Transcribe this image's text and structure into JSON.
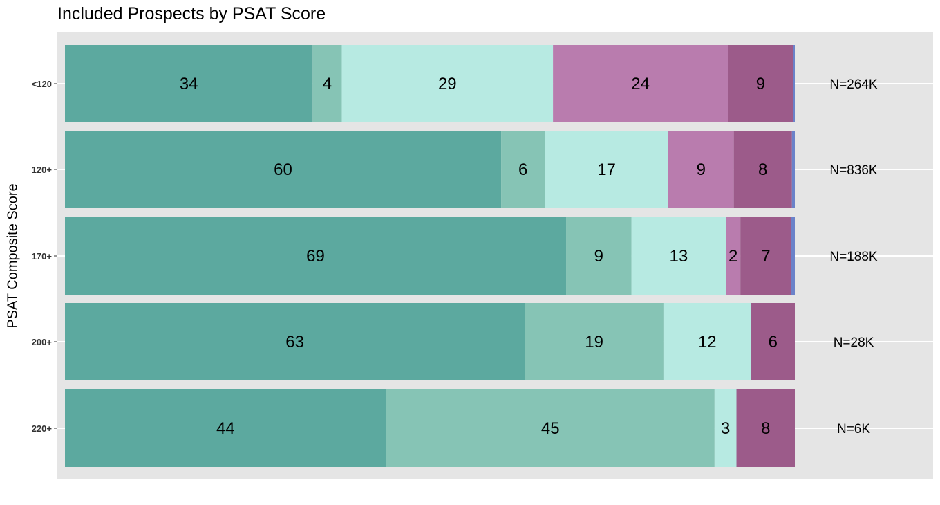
{
  "chart_data": {
    "type": "bar",
    "orientation": "horizontal",
    "stacked": true,
    "title": "Included Prospects by PSAT Score",
    "ylabel": "PSAT Composite Score",
    "xlabel": "",
    "categories": [
      "<120",
      "120+",
      "170+",
      "200+",
      "220+"
    ],
    "n_labels": [
      "N=264K",
      "N=836K",
      "N=188K",
      "N=28K",
      "N=6K"
    ],
    "series": [
      {
        "color": "#5ca99f",
        "values": [
          34,
          60,
          69,
          63,
          44
        ],
        "labels": [
          "34",
          "60",
          "69",
          "63",
          "44"
        ]
      },
      {
        "color": "#86c4b5",
        "values": [
          4,
          6,
          9,
          19,
          45
        ],
        "labels": [
          "4",
          "6",
          "9",
          "19",
          "45"
        ]
      },
      {
        "color": "#b7eae2",
        "values": [
          29,
          17,
          13,
          12,
          3
        ],
        "labels": [
          "29",
          "17",
          "13",
          "12",
          "3"
        ]
      },
      {
        "color": "#b97cae",
        "values": [
          24,
          9,
          2,
          0,
          0
        ],
        "labels": [
          "24",
          "9",
          "2",
          "",
          ""
        ]
      },
      {
        "color": "#9c5b8a",
        "values": [
          9,
          8,
          7,
          6,
          8
        ],
        "labels": [
          "9",
          "8",
          "7",
          "6",
          "8"
        ]
      },
      {
        "color": "#6b82c9",
        "values": [
          0.2,
          0.4,
          0.5,
          0,
          0
        ],
        "labels": [
          "",
          "",
          "",
          "",
          ""
        ]
      }
    ],
    "grid": true,
    "legend": "none",
    "panel_background": "#e5e5e5"
  }
}
